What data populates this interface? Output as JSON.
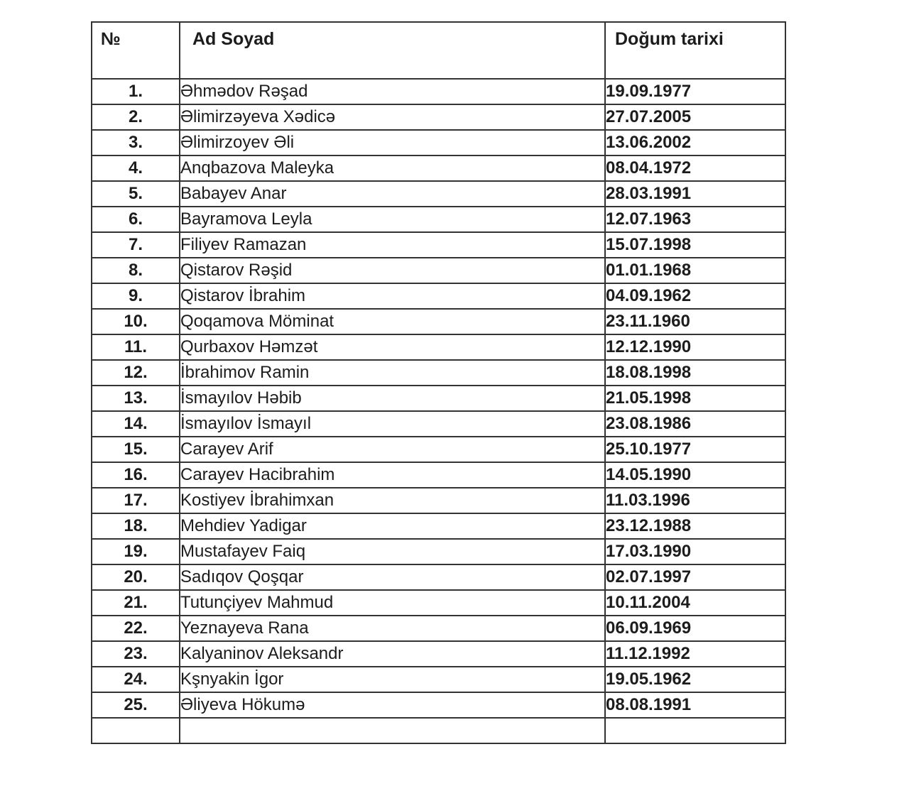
{
  "table": {
    "columns": [
      {
        "label": "№"
      },
      {
        "label": "Ad Soyad"
      },
      {
        "label": "Doğum tarixi"
      }
    ],
    "rows": [
      {
        "no": "1.",
        "name": "Əhmədov Rəşad",
        "dob": "19.09.1977"
      },
      {
        "no": "2.",
        "name": "Əlimirzəyeva Xədicə",
        "dob": "27.07.2005"
      },
      {
        "no": "3.",
        "name": "Əlimirzoyev Əli",
        "dob": "13.06.2002"
      },
      {
        "no": "4.",
        "name": "Anqbazova Maleyka",
        "dob": "08.04.1972"
      },
      {
        "no": "5.",
        "name": "Babayev Anar",
        "dob": "28.03.1991"
      },
      {
        "no": "6.",
        "name": "Bayramova Leyla",
        "dob": "12.07.1963"
      },
      {
        "no": "7.",
        "name": "Filiyev Ramazan",
        "dob": "15.07.1998"
      },
      {
        "no": "8.",
        "name": "Qistarov Rəşid",
        "dob": "01.01.1968"
      },
      {
        "no": "9.",
        "name": "Qistarov İbrahim",
        "dob": "04.09.1962"
      },
      {
        "no": "10.",
        "name": "Qoqamova Möminat",
        "dob": "23.11.1960"
      },
      {
        "no": "11.",
        "name": "Qurbaxov Həmzət",
        "dob": "12.12.1990"
      },
      {
        "no": "12.",
        "name": "İbrahimov Ramin",
        "dob": "18.08.1998"
      },
      {
        "no": "13.",
        "name": "İsmayılov Həbib",
        "dob": "21.05.1998"
      },
      {
        "no": "14.",
        "name": "İsmayılov İsmayıl",
        "dob": "23.08.1986"
      },
      {
        "no": "15.",
        "name": "Carayev Arif",
        "dob": "25.10.1977"
      },
      {
        "no": "16.",
        "name": "Carayev Hacibrahim",
        "dob": "14.05.1990"
      },
      {
        "no": "17.",
        "name": "Kostiyev İbrahimxan",
        "dob": "11.03.1996"
      },
      {
        "no": "18.",
        "name": "Mehdiev Yadigar",
        "dob": "23.12.1988"
      },
      {
        "no": "19.",
        "name": "Mustafayev Faiq",
        "dob": "17.03.1990"
      },
      {
        "no": "20.",
        "name": "Sadıqov Qoşqar",
        "dob": "02.07.1997"
      },
      {
        "no": "21.",
        "name": "Tutunçiyev Mahmud",
        "dob": "10.11.2004"
      },
      {
        "no": "22.",
        "name": "Yeznayeva Rana",
        "dob": "06.09.1969"
      },
      {
        "no": "23.",
        "name": "Kalyaninov Aleksandr",
        "dob": "11.12.1992"
      },
      {
        "no": "24.",
        "name": "Kşnyakin İgor",
        "dob": "19.05.1962"
      },
      {
        "no": "25.",
        "name": "Əliyeva Hökumə",
        "dob": "08.08.1991"
      }
    ],
    "has_trailing_empty_row": true
  },
  "colors": {
    "border": "#333333",
    "text": "#1c1c1c",
    "background": "#ffffff"
  }
}
